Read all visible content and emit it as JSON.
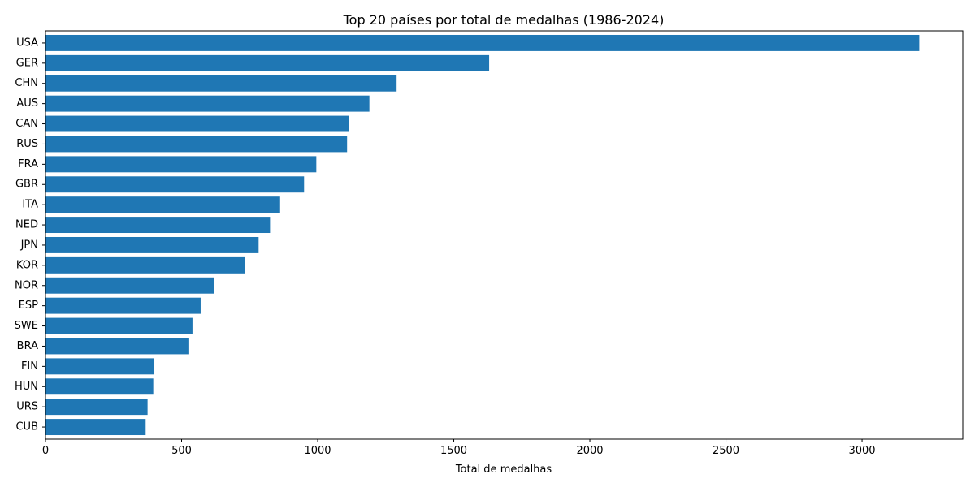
{
  "chart_data": {
    "type": "bar",
    "orientation": "horizontal",
    "title": "Top 20 países por total de medalhas (1986-2024)",
    "xlabel": "Total de medalhas",
    "ylabel": "",
    "xlim": [
      0,
      3370
    ],
    "xticks": [
      0,
      500,
      1000,
      1500,
      2000,
      2500,
      3000
    ],
    "grid": false,
    "bar_color": "#1f77b4",
    "categories": [
      "USA",
      "GER",
      "CHN",
      "AUS",
      "CAN",
      "RUS",
      "FRA",
      "GBR",
      "ITA",
      "NED",
      "JPN",
      "KOR",
      "NOR",
      "ESP",
      "SWE",
      "BRA",
      "FIN",
      "HUN",
      "URS",
      "CUB"
    ],
    "values": [
      3210,
      1630,
      1290,
      1190,
      1115,
      1108,
      995,
      950,
      862,
      825,
      783,
      733,
      620,
      570,
      540,
      528,
      400,
      396,
      375,
      368
    ]
  }
}
